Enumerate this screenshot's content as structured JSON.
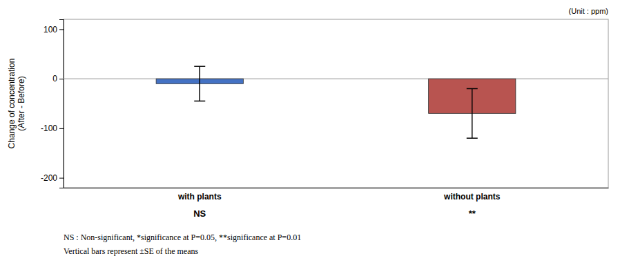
{
  "chart_data": {
    "type": "bar",
    "categories": [
      "with plants",
      "without plants"
    ],
    "values": [
      -10,
      -70
    ],
    "errors": [
      35,
      50
    ],
    "colors": [
      "#4472C4",
      "#B85450"
    ],
    "significance_labels": [
      "NS",
      "**"
    ],
    "ylabel": "Change of concentration\n(After - Before)",
    "annotations": [
      "(Unit : ppm)",
      "NS : Non-significant, *significance at P=0.05, **significance at P=0.01",
      "Vertical bars represent ±SE of the means"
    ],
    "ylim": [
      -220,
      120
    ],
    "yticks": [
      100,
      0,
      -100,
      -200
    ],
    "grid": false
  }
}
